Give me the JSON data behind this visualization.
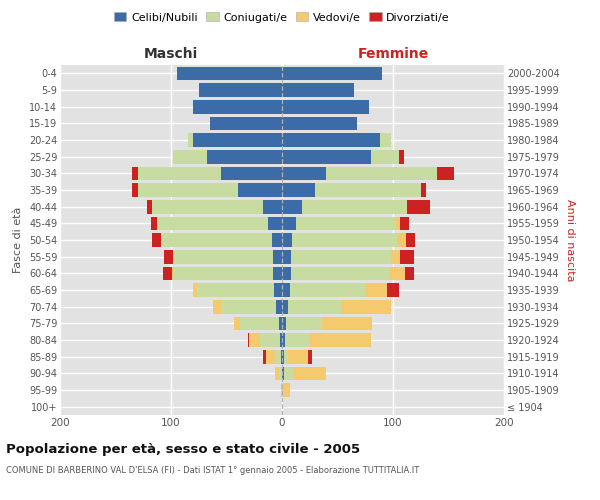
{
  "age_groups": [
    "100+",
    "95-99",
    "90-94",
    "85-89",
    "80-84",
    "75-79",
    "70-74",
    "65-69",
    "60-64",
    "55-59",
    "50-54",
    "45-49",
    "40-44",
    "35-39",
    "30-34",
    "25-29",
    "20-24",
    "15-19",
    "10-14",
    "5-9",
    "0-4"
  ],
  "birth_years": [
    "≤ 1904",
    "1905-1909",
    "1910-1914",
    "1915-1919",
    "1920-1924",
    "1925-1929",
    "1930-1934",
    "1935-1939",
    "1940-1944",
    "1945-1949",
    "1950-1954",
    "1955-1959",
    "1960-1964",
    "1965-1969",
    "1970-1974",
    "1975-1979",
    "1980-1984",
    "1985-1989",
    "1990-1994",
    "1995-1999",
    "2000-2004"
  ],
  "male_celibi": [
    0,
    0,
    0,
    1,
    2,
    3,
    5,
    7,
    8,
    8,
    9,
    13,
    17,
    40,
    55,
    68,
    80,
    65,
    80,
    75,
    95
  ],
  "male_coniugati": [
    0,
    0,
    3,
    5,
    18,
    35,
    50,
    70,
    90,
    90,
    100,
    100,
    100,
    90,
    75,
    30,
    5,
    0,
    0,
    0,
    0
  ],
  "male_vedovi": [
    0,
    1,
    3,
    8,
    10,
    5,
    7,
    3,
    1,
    0,
    0,
    0,
    0,
    0,
    0,
    0,
    0,
    0,
    0,
    0,
    0
  ],
  "male_divorziati": [
    0,
    0,
    0,
    3,
    1,
    0,
    0,
    0,
    8,
    8,
    8,
    5,
    5,
    5,
    5,
    0,
    0,
    0,
    0,
    0,
    0
  ],
  "female_nubili": [
    0,
    0,
    2,
    2,
    3,
    4,
    5,
    7,
    8,
    8,
    9,
    13,
    18,
    30,
    40,
    80,
    88,
    68,
    78,
    65,
    90
  ],
  "female_coniugate": [
    0,
    2,
    8,
    3,
    22,
    32,
    48,
    68,
    88,
    90,
    95,
    90,
    95,
    95,
    100,
    25,
    10,
    0,
    0,
    0,
    0
  ],
  "female_vedove": [
    0,
    5,
    30,
    18,
    55,
    45,
    45,
    20,
    15,
    8,
    8,
    3,
    0,
    0,
    0,
    0,
    0,
    0,
    0,
    0,
    0
  ],
  "female_divorziate": [
    0,
    0,
    0,
    4,
    0,
    0,
    0,
    10,
    8,
    13,
    8,
    8,
    20,
    5,
    15,
    5,
    0,
    0,
    0,
    0,
    0
  ],
  "color_celibi": "#3c6ca8",
  "color_coniugati": "#c8dba0",
  "color_vedovi": "#f5c96e",
  "color_divorziati": "#cc2222",
  "color_bg": "#e2e2e2",
  "color_grid": "#ffffff",
  "xlim": 200,
  "title": "Popolazione per età, sesso e stato civile - 2005",
  "subtitle": "COMUNE DI BARBERINO VAL D'ELSA (FI) - Dati ISTAT 1° gennaio 2005 - Elaborazione TUTTITALIA.IT",
  "legend_labels": [
    "Celibi/Nubili",
    "Coniugati/e",
    "Vedovi/e",
    "Divorziati/e"
  ],
  "label_maschi": "Maschi",
  "label_femmine": "Femmine",
  "ylabel_left": "Fasce di età",
  "ylabel_right": "Anni di nascita"
}
